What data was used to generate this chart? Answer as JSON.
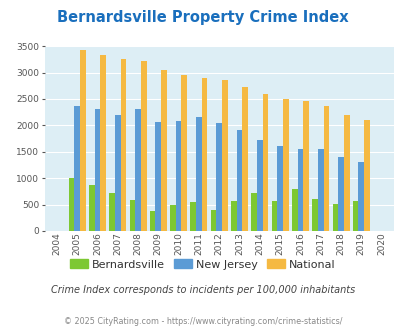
{
  "title": "Bernardsville Property Crime Index",
  "years": [
    2004,
    2005,
    2006,
    2007,
    2008,
    2009,
    2010,
    2011,
    2012,
    2013,
    2014,
    2015,
    2016,
    2017,
    2018,
    2019,
    2020
  ],
  "bernardsville": [
    0,
    1000,
    875,
    725,
    590,
    375,
    490,
    540,
    390,
    560,
    725,
    570,
    800,
    600,
    510,
    565,
    0
  ],
  "new_jersey": [
    0,
    2360,
    2310,
    2200,
    2320,
    2070,
    2075,
    2160,
    2050,
    1905,
    1720,
    1610,
    1555,
    1555,
    1400,
    1315,
    0
  ],
  "national": [
    0,
    3430,
    3340,
    3265,
    3215,
    3045,
    2950,
    2900,
    2855,
    2720,
    2590,
    2500,
    2470,
    2365,
    2200,
    2110,
    0
  ],
  "colors": {
    "bernardsville": "#7dc832",
    "new_jersey": "#5b9bd5",
    "national": "#f5b942"
  },
  "ylim": [
    0,
    3500
  ],
  "yticks": [
    0,
    500,
    1000,
    1500,
    2000,
    2500,
    3000,
    3500
  ],
  "plot_bg": "#ddeef5",
  "subtitle": "Crime Index corresponds to incidents per 100,000 inhabitants",
  "footer": "© 2025 CityRating.com - https://www.cityrating.com/crime-statistics/",
  "title_color": "#1a6fbd",
  "subtitle_color": "#444444",
  "footer_color": "#888888"
}
